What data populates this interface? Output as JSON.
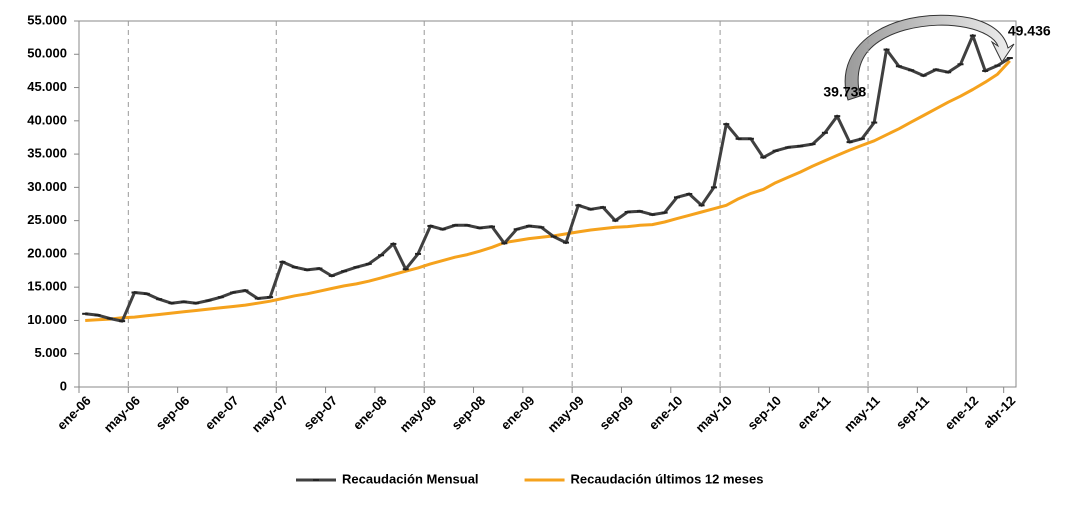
{
  "chart_data": {
    "type": "line",
    "categories": [
      "ene-06",
      null,
      null,
      null,
      "may-06",
      null,
      null,
      null,
      "sep-06",
      null,
      null,
      null,
      "ene-07",
      null,
      null,
      null,
      "may-07",
      null,
      null,
      null,
      "sep-07",
      null,
      null,
      null,
      "ene-08",
      null,
      null,
      null,
      "may-08",
      null,
      null,
      null,
      "sep-08",
      null,
      null,
      null,
      "ene-09",
      null,
      null,
      null,
      "may-09",
      null,
      null,
      null,
      "sep-09",
      null,
      null,
      null,
      "ene-10",
      null,
      null,
      null,
      "may-10",
      null,
      null,
      null,
      "sep-10",
      null,
      null,
      null,
      "ene-11",
      null,
      null,
      null,
      "may-11",
      null,
      null,
      null,
      "sep-11",
      null,
      null,
      null,
      "ene-12",
      null,
      null,
      "abr-12"
    ],
    "series": [
      {
        "name": "Recaudación Mensual",
        "color": "#404040",
        "values": [
          11000,
          10800,
          10300,
          9900,
          14200,
          14000,
          13200,
          12600,
          12800,
          12600,
          13000,
          13500,
          14200,
          14500,
          13300,
          13500,
          18800,
          18000,
          17600,
          17800,
          16700,
          17400,
          18000,
          18500,
          19800,
          21500,
          17700,
          20000,
          24200,
          23700,
          24300,
          24300,
          23900,
          24100,
          21600,
          23700,
          24200,
          24000,
          22600,
          21700,
          27300,
          26700,
          27000,
          25000,
          26300,
          26400,
          25900,
          26200,
          28500,
          29000,
          27300,
          30000,
          39500,
          37300,
          37300,
          34500,
          35500,
          36000,
          36200,
          36500,
          38200,
          40700,
          36800,
          37300,
          39738,
          50700,
          48200,
          47600,
          46800,
          47700,
          47300,
          48500,
          52800,
          47500,
          48300,
          49436
        ],
        "value_labels": [
          null,
          null,
          null,
          null,
          null,
          null,
          null,
          null,
          null,
          null,
          null,
          null,
          null,
          null,
          null,
          null,
          null,
          null,
          null,
          null,
          null,
          null,
          null,
          null,
          null,
          null,
          null,
          null,
          null,
          null,
          null,
          null,
          null,
          null,
          null,
          null,
          null,
          null,
          null,
          null,
          null,
          null,
          null,
          null,
          null,
          null,
          null,
          null,
          null,
          null,
          null,
          null,
          null,
          null,
          null,
          null,
          null,
          null,
          null,
          null,
          null,
          null,
          null,
          null,
          "39.738",
          null,
          null,
          null,
          null,
          null,
          null,
          null,
          null,
          null,
          null,
          "49.436"
        ]
      },
      {
        "name": "Recaudación últimos 12 meses",
        "color": "#F5A21D",
        "values": [
          10000,
          10100,
          10200,
          10400,
          10500,
          10700,
          10900,
          11100,
          11300,
          11500,
          11700,
          11900,
          12100,
          12300,
          12600,
          12900,
          13300,
          13700,
          14000,
          14400,
          14800,
          15200,
          15500,
          15900,
          16400,
          16900,
          17400,
          17900,
          18500,
          19000,
          19500,
          19900,
          20400,
          21000,
          21700,
          22000,
          22300,
          22500,
          22700,
          23000,
          23300,
          23600,
          23800,
          24000,
          24100,
          24300,
          24400,
          24800,
          25300,
          25800,
          26300,
          26800,
          27300,
          28300,
          29100,
          29700,
          30700,
          31500,
          32300,
          33200,
          34000,
          34800,
          35600,
          36300,
          37000,
          37900,
          38800,
          39800,
          40800,
          41800,
          42800,
          43700,
          44700,
          45800,
          47000,
          49000
        ]
      }
    ],
    "ylim": [
      0,
      55000
    ],
    "yticks": [
      0,
      {
        "value": 5000,
        "label": "5.000"
      },
      {
        "value": 10000,
        "label": "10.000"
      },
      {
        "value": 15000,
        "label": "15.000"
      },
      {
        "value": 20000,
        "label": "20.000"
      },
      {
        "value": 25000,
        "label": "25.000"
      },
      {
        "value": 30000,
        "label": "30.000"
      },
      {
        "value": 35000,
        "label": "35.000"
      },
      {
        "value": 40000,
        "label": "40.000"
      },
      {
        "value": 45000,
        "label": "45.000"
      },
      {
        "value": 50000,
        "label": "50.000"
      },
      {
        "value": 55000,
        "label": "55.000"
      }
    ],
    "legend": "bottom"
  }
}
